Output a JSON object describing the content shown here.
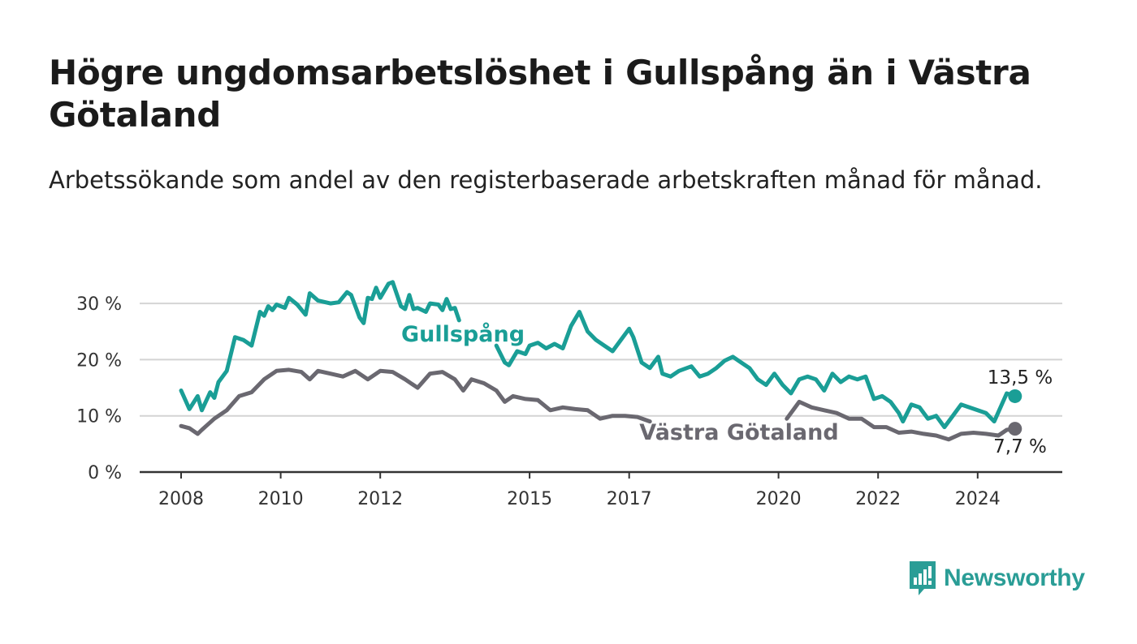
{
  "title": "Högre ungdomsarbetslöshet i Gullspång än i Västra Götaland",
  "subtitle": "Arbetssökande som andel av den registerbaserade arbetskraften månad för månad.",
  "brand": {
    "name": "Newsworthy",
    "color": "#2a9d96",
    "icon": "chart-bars-icon"
  },
  "chart_data": {
    "type": "line",
    "x_ticks": [
      "2008",
      "2010",
      "2012",
      "2015",
      "2017",
      "2020",
      "2022",
      "2024"
    ],
    "y_ticks": [
      "0 %",
      "10 %",
      "20 %",
      "30 %"
    ],
    "ylim": [
      0,
      30
    ],
    "grid": true,
    "series": [
      {
        "name": "Gullspång",
        "color": "#1a9e96",
        "end_label": "13,5 %",
        "points": [
          [
            "2008-01",
            14.5
          ],
          [
            "2008-03",
            11.2
          ],
          [
            "2008-05",
            13.5
          ],
          [
            "2008-06",
            11.0
          ],
          [
            "2008-08",
            14.2
          ],
          [
            "2008-09",
            13.2
          ],
          [
            "2008-10",
            16.0
          ],
          [
            "2008-12",
            18.0
          ],
          [
            "2009-02",
            24.0
          ],
          [
            "2009-04",
            23.5
          ],
          [
            "2009-06",
            22.5
          ],
          [
            "2009-08",
            28.5
          ],
          [
            "2009-09",
            27.8
          ],
          [
            "2009-10",
            29.5
          ],
          [
            "2009-11",
            28.8
          ],
          [
            "2009-12",
            29.8
          ],
          [
            "2010-02",
            29.2
          ],
          [
            "2010-03",
            31.0
          ],
          [
            "2010-05",
            29.8
          ],
          [
            "2010-07",
            28.0
          ],
          [
            "2010-08",
            31.8
          ],
          [
            "2010-10",
            30.5
          ],
          [
            "2011-01",
            30.0
          ],
          [
            "2011-03",
            30.2
          ],
          [
            "2011-05",
            32.0
          ],
          [
            "2011-06",
            31.5
          ],
          [
            "2011-08",
            27.5
          ],
          [
            "2011-09",
            26.5
          ],
          [
            "2011-10",
            31.0
          ],
          [
            "2011-11",
            30.8
          ],
          [
            "2011-12",
            32.8
          ],
          [
            "2012-01",
            31.0
          ],
          [
            "2012-03",
            33.5
          ],
          [
            "2012-04",
            33.8
          ],
          [
            "2012-06",
            29.5
          ],
          [
            "2012-07",
            29.0
          ],
          [
            "2012-08",
            31.5
          ],
          [
            "2012-09",
            29.0
          ],
          [
            "2012-10",
            29.2
          ],
          [
            "2012-12",
            28.5
          ],
          [
            "2013-01",
            30.0
          ],
          [
            "2013-03",
            29.8
          ],
          [
            "2013-04",
            28.8
          ],
          [
            "2013-05",
            30.8
          ],
          [
            "2013-06",
            29.0
          ],
          [
            "2013-07",
            29.2
          ],
          [
            "2013-08",
            27.0
          ],
          null,
          [
            "2014-05",
            22.5
          ],
          [
            "2014-07",
            19.5
          ],
          [
            "2014-08",
            19.0
          ],
          [
            "2014-10",
            21.5
          ],
          [
            "2014-12",
            21.0
          ],
          [
            "2015-01",
            22.5
          ],
          [
            "2015-03",
            23.0
          ],
          [
            "2015-05",
            22.0
          ],
          [
            "2015-07",
            22.8
          ],
          [
            "2015-09",
            22.0
          ],
          [
            "2015-11",
            26.0
          ],
          [
            "2016-01",
            28.5
          ],
          [
            "2016-03",
            25.0
          ],
          [
            "2016-05",
            23.5
          ],
          [
            "2016-07",
            22.5
          ],
          [
            "2016-09",
            21.5
          ],
          [
            "2016-11",
            23.5
          ],
          [
            "2017-01",
            25.5
          ],
          [
            "2017-02",
            24.0
          ],
          [
            "2017-04",
            19.5
          ],
          [
            "2017-06",
            18.5
          ],
          [
            "2017-08",
            20.5
          ],
          [
            "2017-09",
            17.5
          ],
          [
            "2017-11",
            17.0
          ],
          [
            "2018-01",
            18.0
          ],
          [
            "2018-04",
            18.8
          ],
          [
            "2018-06",
            17.0
          ],
          [
            "2018-08",
            17.5
          ],
          [
            "2018-10",
            18.5
          ],
          [
            "2018-12",
            19.8
          ],
          [
            "2019-02",
            20.5
          ],
          [
            "2019-04",
            19.5
          ],
          [
            "2019-06",
            18.5
          ],
          [
            "2019-08",
            16.5
          ],
          [
            "2019-10",
            15.5
          ],
          [
            "2019-12",
            17.5
          ],
          [
            "2020-02",
            15.5
          ],
          [
            "2020-04",
            14.0
          ],
          [
            "2020-06",
            16.5
          ],
          [
            "2020-08",
            17.0
          ],
          [
            "2020-10",
            16.5
          ],
          [
            "2020-12",
            14.5
          ],
          [
            "2021-02",
            17.5
          ],
          [
            "2021-04",
            16.0
          ],
          [
            "2021-06",
            17.0
          ],
          [
            "2021-08",
            16.5
          ],
          [
            "2021-10",
            17.0
          ],
          [
            "2021-12",
            13.0
          ],
          [
            "2022-02",
            13.5
          ],
          [
            "2022-04",
            12.5
          ],
          [
            "2022-06",
            10.5
          ],
          [
            "2022-07",
            9.0
          ],
          [
            "2022-09",
            12.0
          ],
          [
            "2022-11",
            11.5
          ],
          [
            "2023-01",
            9.5
          ],
          [
            "2023-03",
            10.0
          ],
          [
            "2023-05",
            8.0
          ],
          [
            "2023-07",
            10.0
          ],
          [
            "2023-09",
            12.0
          ],
          [
            "2023-11",
            11.5
          ],
          [
            "2024-01",
            11.0
          ],
          [
            "2024-03",
            10.5
          ],
          [
            "2024-05",
            9.0
          ],
          [
            "2024-08",
            14.0
          ],
          [
            "2024-10",
            13.5
          ]
        ]
      },
      {
        "name": "Västra Götaland",
        "color": "#6a6870",
        "end_label": "7,7 %",
        "points": [
          [
            "2008-01",
            8.2
          ],
          [
            "2008-03",
            7.8
          ],
          [
            "2008-05",
            6.8
          ],
          [
            "2008-06",
            7.5
          ],
          [
            "2008-09",
            9.5
          ],
          [
            "2008-12",
            11.0
          ],
          [
            "2009-03",
            13.5
          ],
          [
            "2009-06",
            14.2
          ],
          [
            "2009-09",
            16.5
          ],
          [
            "2009-12",
            18.0
          ],
          [
            "2010-03",
            18.2
          ],
          [
            "2010-06",
            17.8
          ],
          [
            "2010-08",
            16.5
          ],
          [
            "2010-10",
            18.0
          ],
          [
            "2011-01",
            17.5
          ],
          [
            "2011-04",
            17.0
          ],
          [
            "2011-07",
            18.0
          ],
          [
            "2011-10",
            16.5
          ],
          [
            "2012-01",
            18.0
          ],
          [
            "2012-04",
            17.8
          ],
          [
            "2012-07",
            16.5
          ],
          [
            "2012-10",
            15.0
          ],
          [
            "2013-01",
            17.5
          ],
          [
            "2013-04",
            17.8
          ],
          [
            "2013-07",
            16.5
          ],
          [
            "2013-09",
            14.5
          ],
          [
            "2013-11",
            16.5
          ],
          [
            "2014-02",
            15.8
          ],
          [
            "2014-05",
            14.5
          ],
          [
            "2014-07",
            12.5
          ],
          [
            "2014-09",
            13.5
          ],
          [
            "2014-12",
            13.0
          ],
          [
            "2015-03",
            12.8
          ],
          [
            "2015-06",
            11.0
          ],
          [
            "2015-09",
            11.5
          ],
          [
            "2015-12",
            11.2
          ],
          [
            "2016-03",
            11.0
          ],
          [
            "2016-06",
            9.5
          ],
          [
            "2016-09",
            10.0
          ],
          [
            "2016-12",
            10.0
          ],
          [
            "2017-03",
            9.8
          ],
          [
            "2017-06",
            9.0
          ],
          null,
          [
            "2020-03",
            9.5
          ],
          [
            "2020-06",
            12.5
          ],
          [
            "2020-09",
            11.5
          ],
          [
            "2020-12",
            11.0
          ],
          [
            "2021-03",
            10.5
          ],
          [
            "2021-06",
            9.5
          ],
          [
            "2021-09",
            9.5
          ],
          [
            "2021-12",
            8.0
          ],
          [
            "2022-03",
            8.0
          ],
          [
            "2022-06",
            7.0
          ],
          [
            "2022-09",
            7.2
          ],
          [
            "2022-12",
            6.8
          ],
          [
            "2023-03",
            6.5
          ],
          [
            "2023-06",
            5.8
          ],
          [
            "2023-09",
            6.8
          ],
          [
            "2023-12",
            7.0
          ],
          [
            "2024-03",
            6.8
          ],
          [
            "2024-06",
            6.5
          ],
          [
            "2024-08",
            7.5
          ],
          [
            "2024-10",
            7.7
          ]
        ]
      }
    ]
  }
}
